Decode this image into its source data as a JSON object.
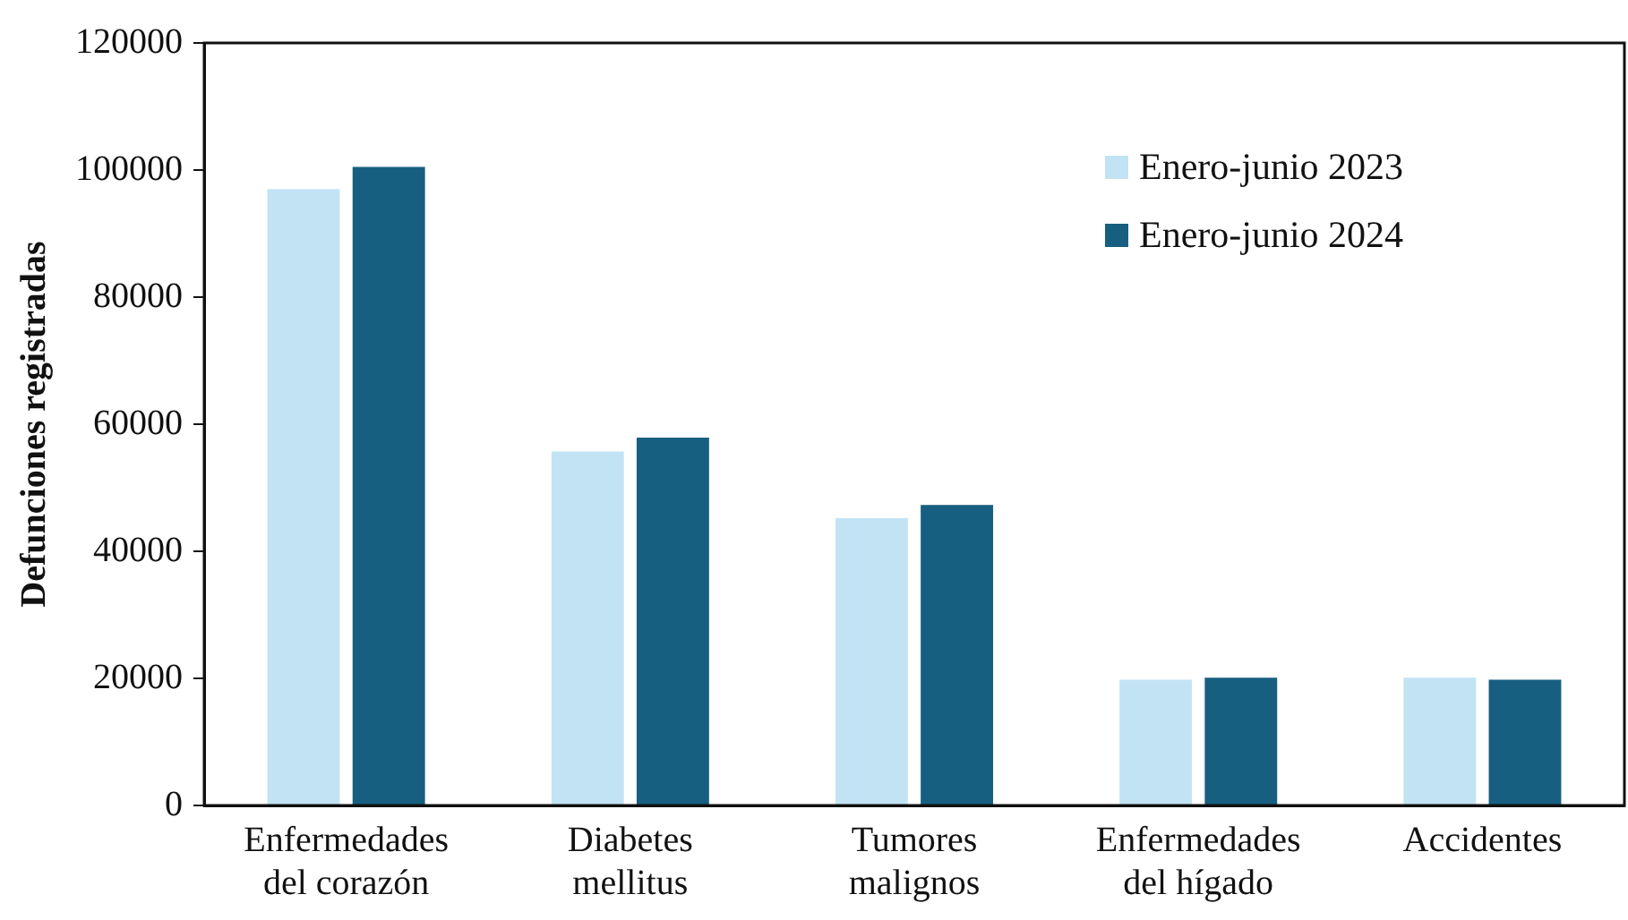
{
  "chart_data": {
    "type": "bar",
    "ylabel": "Defunciones registradas",
    "categories": [
      "Enfermedades del corazón",
      "Diabetes mellitus",
      "Tumores malignos",
      "Enfermedades del hígado",
      "Accidentes"
    ],
    "series": [
      {
        "name": "Enero-junio 2023",
        "color": "#c2e3f3",
        "values": [
          97000,
          55700,
          45200,
          19800,
          20100
        ]
      },
      {
        "name": "Enero-junio 2024",
        "color": "#175f80",
        "values": [
          100500,
          57900,
          47300,
          20100,
          19800
        ]
      }
    ],
    "ylim": [
      0,
      120000
    ],
    "yticks": [
      0,
      20000,
      40000,
      60000,
      80000,
      100000,
      120000
    ],
    "grid": false,
    "legend": "top right"
  }
}
